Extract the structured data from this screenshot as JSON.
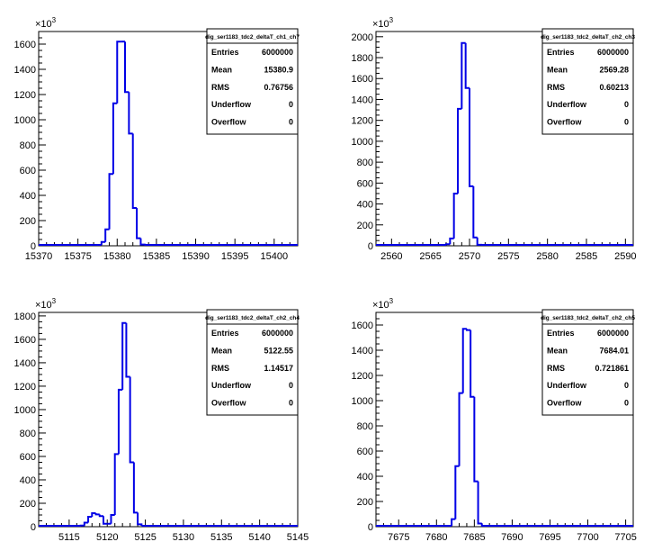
{
  "exponent_label": "×10",
  "exponent_power": "3",
  "stats_labels": [
    "Entries",
    "Mean",
    "RMS",
    "Underflow",
    "Overflow"
  ],
  "chart_data": [
    {
      "type": "bar",
      "title": "dig_ser1183_tdc2_deltaT_ch1_ch7",
      "xlim": [
        15370,
        15403
      ],
      "ylim": [
        0,
        1700
      ],
      "x_ticks": [
        "15370",
        "15375",
        "15380",
        "15385",
        "15390",
        "15395",
        "15400"
      ],
      "y_ticks": [
        "0",
        "200",
        "400",
        "600",
        "800",
        "1000",
        "1200",
        "1400",
        "1600"
      ],
      "bins": [
        {
          "x0": 15377.5,
          "x1": 15378.0,
          "y": 5
        },
        {
          "x0": 15378.0,
          "x1": 15378.5,
          "y": 30
        },
        {
          "x0": 15378.5,
          "x1": 15379.0,
          "y": 130
        },
        {
          "x0": 15379.0,
          "x1": 15379.5,
          "y": 570
        },
        {
          "x0": 15379.5,
          "x1": 15380.0,
          "y": 1130
        },
        {
          "x0": 15380.0,
          "x1": 15380.5,
          "y": 1620
        },
        {
          "x0": 15380.5,
          "x1": 15381.0,
          "y": 1620
        },
        {
          "x0": 15381.0,
          "x1": 15381.5,
          "y": 1220
        },
        {
          "x0": 15381.5,
          "x1": 15382.0,
          "y": 890
        },
        {
          "x0": 15382.0,
          "x1": 15382.5,
          "y": 300
        },
        {
          "x0": 15382.5,
          "x1": 15383.0,
          "y": 60
        },
        {
          "x0": 15383.0,
          "x1": 15383.5,
          "y": 10
        }
      ],
      "stats": {
        "Entries": "6000000",
        "Mean": "15380.9",
        "RMS": "0.76756",
        "Underflow": "0",
        "Overflow": "0"
      }
    },
    {
      "type": "bar",
      "title": "dig_ser1183_tdc2_deltaT_ch2_ch3",
      "xlim": [
        2558,
        2591
      ],
      "ylim": [
        0,
        2050
      ],
      "x_ticks": [
        "2560",
        "2565",
        "2570",
        "2575",
        "2580",
        "2585",
        "2590"
      ],
      "y_ticks": [
        "0",
        "200",
        "400",
        "600",
        "800",
        "1000",
        "1200",
        "1400",
        "1600",
        "1800",
        "2000"
      ],
      "bins": [
        {
          "x0": 2567.0,
          "x1": 2567.5,
          "y": 15
        },
        {
          "x0": 2567.5,
          "x1": 2568.0,
          "y": 70
        },
        {
          "x0": 2568.0,
          "x1": 2568.5,
          "y": 500
        },
        {
          "x0": 2568.5,
          "x1": 2569.0,
          "y": 1310
        },
        {
          "x0": 2569.0,
          "x1": 2569.5,
          "y": 1940
        },
        {
          "x0": 2569.5,
          "x1": 2570.0,
          "y": 1510
        },
        {
          "x0": 2570.0,
          "x1": 2570.5,
          "y": 570
        },
        {
          "x0": 2570.5,
          "x1": 2571.0,
          "y": 80
        },
        {
          "x0": 2571.0,
          "x1": 2571.5,
          "y": 10
        }
      ],
      "stats": {
        "Entries": "6000000",
        "Mean": "2569.28",
        "RMS": "0.60213",
        "Underflow": "0",
        "Overflow": "0"
      }
    },
    {
      "type": "bar",
      "title": "dig_ser1183_tdc2_deltaT_ch2_ch4",
      "xlim": [
        5111,
        5145
      ],
      "ylim": [
        0,
        1830
      ],
      "x_ticks": [
        "5115",
        "5120",
        "5125",
        "5130",
        "5135",
        "5140",
        "5145"
      ],
      "y_ticks": [
        "0",
        "200",
        "400",
        "600",
        "800",
        "1000",
        "1200",
        "1400",
        "1600",
        "1800"
      ],
      "bins": [
        {
          "x0": 5116.5,
          "x1": 5117.0,
          "y": 10
        },
        {
          "x0": 5117.0,
          "x1": 5117.5,
          "y": 35
        },
        {
          "x0": 5117.5,
          "x1": 5118.0,
          "y": 85
        },
        {
          "x0": 5118.0,
          "x1": 5118.5,
          "y": 115
        },
        {
          "x0": 5118.5,
          "x1": 5119.0,
          "y": 105
        },
        {
          "x0": 5119.0,
          "x1": 5119.5,
          "y": 90
        },
        {
          "x0": 5119.5,
          "x1": 5120.0,
          "y": 25
        },
        {
          "x0": 5120.0,
          "x1": 5120.5,
          "y": 25
        },
        {
          "x0": 5120.5,
          "x1": 5121.0,
          "y": 100
        },
        {
          "x0": 5121.0,
          "x1": 5121.5,
          "y": 620
        },
        {
          "x0": 5121.5,
          "x1": 5122.0,
          "y": 1170
        },
        {
          "x0": 5122.0,
          "x1": 5122.5,
          "y": 1740
        },
        {
          "x0": 5122.5,
          "x1": 5123.0,
          "y": 1280
        },
        {
          "x0": 5123.0,
          "x1": 5123.5,
          "y": 550
        },
        {
          "x0": 5123.5,
          "x1": 5124.0,
          "y": 120
        },
        {
          "x0": 5124.0,
          "x1": 5124.5,
          "y": 20
        }
      ],
      "stats": {
        "Entries": "6000000",
        "Mean": "5122.55",
        "RMS": "1.14517",
        "Underflow": "0",
        "Overflow": "0"
      }
    },
    {
      "type": "bar",
      "title": "dig_ser1183_tdc2_deltaT_ch2_ch5",
      "xlim": [
        7672,
        7706
      ],
      "ylim": [
        0,
        1700
      ],
      "x_ticks": [
        "7675",
        "7680",
        "7685",
        "7690",
        "7695",
        "7700",
        "7705"
      ],
      "y_ticks": [
        "0",
        "200",
        "400",
        "600",
        "800",
        "1000",
        "1200",
        "1400",
        "1600"
      ],
      "bins": [
        {
          "x0": 7682.0,
          "x1": 7682.5,
          "y": 60
        },
        {
          "x0": 7682.5,
          "x1": 7683.0,
          "y": 480
        },
        {
          "x0": 7683.0,
          "x1": 7683.5,
          "y": 1060
        },
        {
          "x0": 7683.5,
          "x1": 7684.0,
          "y": 1570
        },
        {
          "x0": 7684.0,
          "x1": 7684.5,
          "y": 1560
        },
        {
          "x0": 7684.5,
          "x1": 7685.0,
          "y": 1030
        },
        {
          "x0": 7685.0,
          "x1": 7685.5,
          "y": 360
        },
        {
          "x0": 7685.5,
          "x1": 7686.0,
          "y": 25
        },
        {
          "x0": 7686.0,
          "x1": 7686.5,
          "y": 5
        }
      ],
      "stats": {
        "Entries": "6000000",
        "Mean": "7684.01",
        "RMS": "0.721861",
        "Underflow": "0",
        "Overflow": "0"
      }
    }
  ],
  "colors": {
    "line": "#0000e6",
    "axis": "#000000",
    "background": "#ffffff"
  }
}
